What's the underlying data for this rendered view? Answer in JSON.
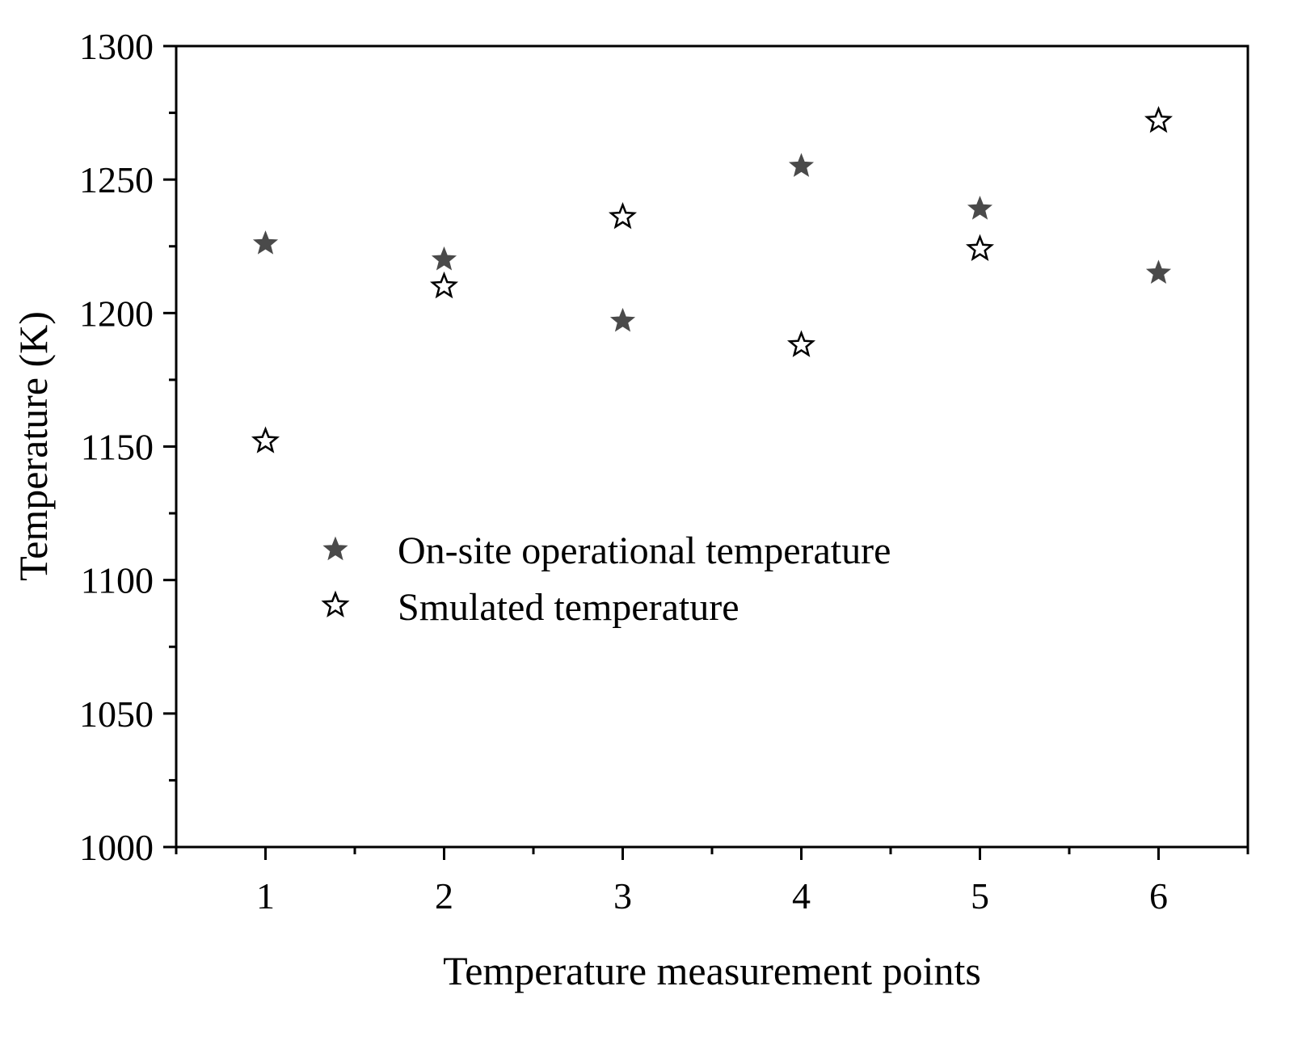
{
  "chart_data": {
    "type": "scatter",
    "title": "",
    "xlabel": "Temperature measurement points",
    "ylabel": "Temperature (K)",
    "xlim": [
      0.5,
      6.5
    ],
    "ylim": [
      1000,
      1300
    ],
    "x_ticks": [
      1,
      2,
      3,
      4,
      5,
      6
    ],
    "y_ticks": [
      1000,
      1050,
      1100,
      1150,
      1200,
      1250,
      1300
    ],
    "grid": false,
    "legend_position": "center-left",
    "series": [
      {
        "name": "On-site operational temperature",
        "marker": "filled-star",
        "color": "#4a4a4a",
        "x": [
          1,
          2,
          3,
          4,
          5,
          6
        ],
        "y": [
          1226,
          1220,
          1197,
          1255,
          1239,
          1215
        ]
      },
      {
        "name": "Smulated temperature",
        "marker": "hollow-star",
        "color": "#000000",
        "x": [
          1,
          2,
          3,
          4,
          5,
          6
        ],
        "y": [
          1152,
          1210,
          1236,
          1188,
          1224,
          1272
        ]
      }
    ]
  }
}
